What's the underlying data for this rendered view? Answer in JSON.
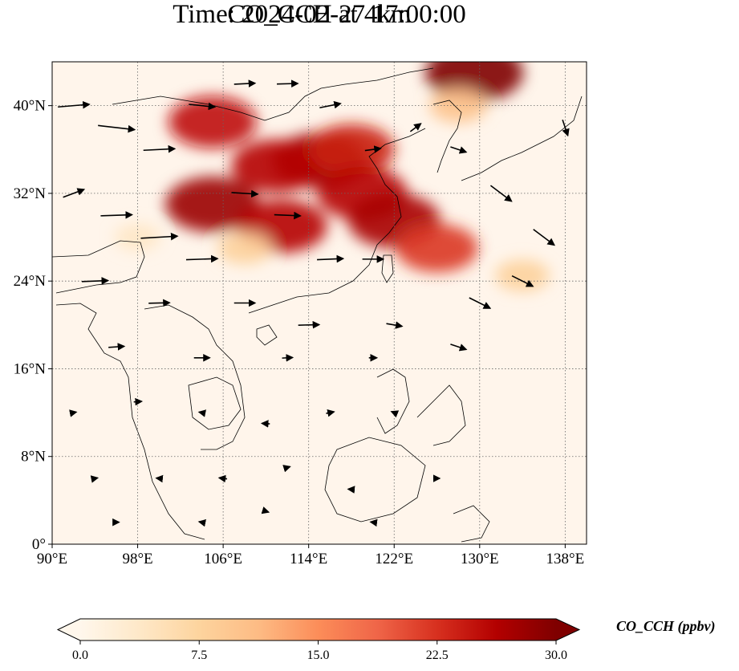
{
  "title": {
    "line1": "CO_CCH at 4km",
    "line2": "Time: 2024-02-27 17:00:00"
  },
  "map": {
    "projection": "PlateCarree",
    "lon_range": [
      90,
      140
    ],
    "lat_range": [
      0,
      44
    ],
    "lon_ticks": [
      {
        "value": 90,
        "label": "90°E"
      },
      {
        "value": 98,
        "label": "98°E"
      },
      {
        "value": 106,
        "label": "106°E"
      },
      {
        "value": 114,
        "label": "114°E"
      },
      {
        "value": 122,
        "label": "122°E"
      },
      {
        "value": 130,
        "label": "130°E"
      },
      {
        "value": 138,
        "label": "138°E"
      }
    ],
    "lat_ticks": [
      {
        "value": 0,
        "label": "0°"
      },
      {
        "value": 8,
        "label": "8°N"
      },
      {
        "value": 16,
        "label": "16°N"
      },
      {
        "value": 24,
        "label": "24°N"
      },
      {
        "value": 32,
        "label": "32°N"
      },
      {
        "value": 40,
        "label": "40°N"
      }
    ],
    "gridlines": "dotted gray",
    "background_color": "#fff5eb",
    "plume_regions": [
      {
        "lon": 115,
        "lat": 35,
        "value": 28
      },
      {
        "lon": 111,
        "lat": 34.5,
        "value": 26
      },
      {
        "lon": 118,
        "lat": 36,
        "value": 24
      },
      {
        "lon": 119,
        "lat": 32,
        "value": 26
      },
      {
        "lon": 122,
        "lat": 29.5,
        "value": 27
      },
      {
        "lon": 126,
        "lat": 27,
        "value": 22
      },
      {
        "lon": 129.5,
        "lat": 43,
        "value": 30
      },
      {
        "lon": 105,
        "lat": 38.5,
        "value": 25
      },
      {
        "lon": 105,
        "lat": 31,
        "value": 28
      },
      {
        "lon": 111.5,
        "lat": 29,
        "value": 26
      },
      {
        "lon": 128,
        "lat": 40,
        "value": 10
      },
      {
        "lon": 134,
        "lat": 24.5,
        "value": 8
      },
      {
        "lon": 108,
        "lat": 27,
        "value": 8
      },
      {
        "lon": 98,
        "lat": 28,
        "value": 4
      }
    ],
    "wind_vectors": [
      {
        "lon": 92,
        "lat": 40,
        "u": 6,
        "v": 0.5
      },
      {
        "lon": 96,
        "lat": 38,
        "u": 7,
        "v": -0.8
      },
      {
        "lon": 100,
        "lat": 36,
        "u": 6,
        "v": 0.3
      },
      {
        "lon": 104,
        "lat": 40,
        "u": 5,
        "v": -0.5
      },
      {
        "lon": 108,
        "lat": 42,
        "u": 4,
        "v": 0.2
      },
      {
        "lon": 112,
        "lat": 42,
        "u": 4,
        "v": 0.1
      },
      {
        "lon": 116,
        "lat": 40,
        "u": 4,
        "v": 0.8
      },
      {
        "lon": 120,
        "lat": 36,
        "u": 3,
        "v": 0.4
      },
      {
        "lon": 124,
        "lat": 38,
        "u": 2,
        "v": 1.5
      },
      {
        "lon": 128,
        "lat": 36,
        "u": 3,
        "v": -1
      },
      {
        "lon": 132,
        "lat": 32,
        "u": 4,
        "v": -3
      },
      {
        "lon": 136,
        "lat": 28,
        "u": 4,
        "v": -3
      },
      {
        "lon": 134,
        "lat": 24,
        "u": 4,
        "v": -2
      },
      {
        "lon": 130,
        "lat": 22,
        "u": 4,
        "v": -2
      },
      {
        "lon": 138,
        "lat": 38,
        "u": 1,
        "v": -3
      },
      {
        "lon": 92,
        "lat": 32,
        "u": 4,
        "v": 1.5
      },
      {
        "lon": 96,
        "lat": 30,
        "u": 6,
        "v": 0.2
      },
      {
        "lon": 100,
        "lat": 28,
        "u": 7,
        "v": 0.4
      },
      {
        "lon": 104,
        "lat": 26,
        "u": 6,
        "v": 0.2
      },
      {
        "lon": 108,
        "lat": 32,
        "u": 5,
        "v": -0.3
      },
      {
        "lon": 112,
        "lat": 30,
        "u": 5,
        "v": -0.2
      },
      {
        "lon": 116,
        "lat": 26,
        "u": 5,
        "v": 0.2
      },
      {
        "lon": 120,
        "lat": 26,
        "u": 4,
        "v": 0
      },
      {
        "lon": 94,
        "lat": 24,
        "u": 5,
        "v": 0.2
      },
      {
        "lon": 100,
        "lat": 22,
        "u": 4,
        "v": 0.1
      },
      {
        "lon": 108,
        "lat": 22,
        "u": 4,
        "v": 0
      },
      {
        "lon": 114,
        "lat": 20,
        "u": 4,
        "v": 0.1
      },
      {
        "lon": 122,
        "lat": 20,
        "u": 3,
        "v": -0.5
      },
      {
        "lon": 128,
        "lat": 18,
        "u": 3,
        "v": -1
      },
      {
        "lon": 96,
        "lat": 18,
        "u": 3,
        "v": 0.2
      },
      {
        "lon": 104,
        "lat": 17,
        "u": 3,
        "v": 0
      },
      {
        "lon": 112,
        "lat": 17,
        "u": 2,
        "v": 0.1
      },
      {
        "lon": 120,
        "lat": 17,
        "u": 1.5,
        "v": 0
      },
      {
        "lon": 92,
        "lat": 12,
        "u": 1,
        "v": 0.2
      },
      {
        "lon": 98,
        "lat": 13,
        "u": 1.5,
        "v": 0.1
      },
      {
        "lon": 104,
        "lat": 12,
        "u": -1,
        "v": 0.2
      },
      {
        "lon": 110,
        "lat": 11,
        "u": -1.5,
        "v": 0.1
      },
      {
        "lon": 116,
        "lat": 12,
        "u": 1.5,
        "v": 0.3
      },
      {
        "lon": 122,
        "lat": 12,
        "u": -1,
        "v": 0.4
      },
      {
        "lon": 94,
        "lat": 6,
        "u": 1,
        "v": 0.2
      },
      {
        "lon": 100,
        "lat": 6,
        "u": -1,
        "v": 0.1
      },
      {
        "lon": 106,
        "lat": 6,
        "u": -1.5,
        "v": 0.2
      },
      {
        "lon": 112,
        "lat": 7,
        "u": 1,
        "v": 0.3
      },
      {
        "lon": 118,
        "lat": 5,
        "u": -1.2,
        "v": 0.1
      },
      {
        "lon": 126,
        "lat": 6,
        "u": 1,
        "v": 0
      },
      {
        "lon": 96,
        "lat": 2,
        "u": 1,
        "v": 0
      },
      {
        "lon": 104,
        "lat": 2,
        "u": -1,
        "v": 0.2
      },
      {
        "lon": 110,
        "lat": 3,
        "u": 1,
        "v": -0.3
      },
      {
        "lon": 120,
        "lat": 2,
        "u": -0.8,
        "v": 0.1
      }
    ]
  },
  "colorbar": {
    "label": "CO_CCH (ppbv)",
    "min": 0.0,
    "max": 30.0,
    "extend": "both",
    "ticks": [
      {
        "value": 0.0,
        "label": "0.0"
      },
      {
        "value": 7.5,
        "label": "7.5"
      },
      {
        "value": 15.0,
        "label": "15.0"
      },
      {
        "value": 22.5,
        "label": "22.5"
      },
      {
        "value": 30.0,
        "label": "30.0"
      }
    ],
    "colormap": "OrRd",
    "color_stops": [
      "#fff7ec",
      "#fee8c8",
      "#fdd49e",
      "#fdbb84",
      "#fc8d59",
      "#ef6548",
      "#d7301f",
      "#b30000",
      "#7f0000"
    ]
  }
}
